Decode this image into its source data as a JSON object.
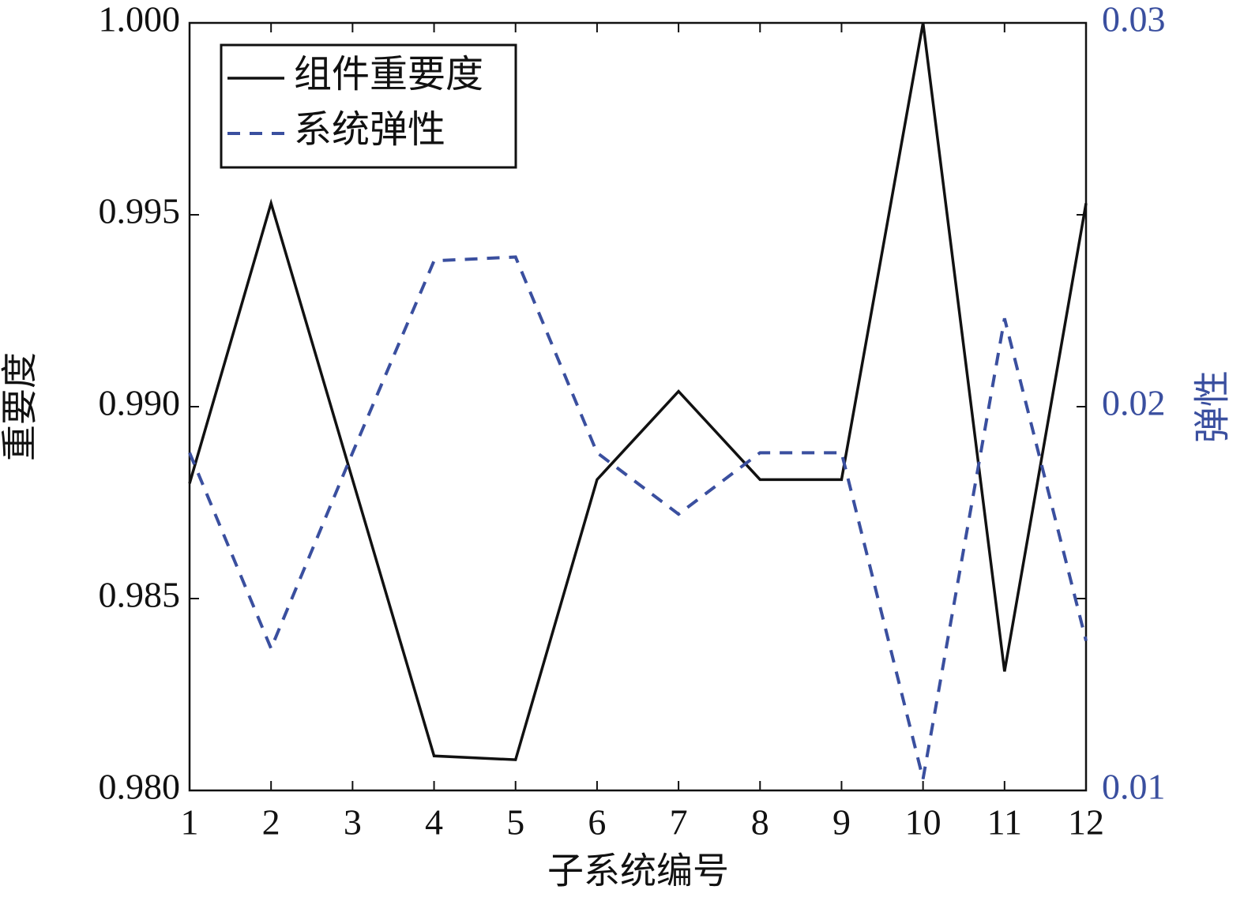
{
  "chart_data": {
    "type": "line",
    "x": [
      1,
      2,
      3,
      4,
      5,
      6,
      7,
      8,
      9,
      10,
      11,
      12
    ],
    "xlim": [
      1,
      12
    ],
    "xticks": [
      1,
      2,
      3,
      4,
      5,
      6,
      7,
      8,
      9,
      10,
      11,
      12
    ],
    "ylim": [
      0.98,
      1.0
    ],
    "yticks": [
      {
        "value": 0.98,
        "label": "0.980"
      },
      0.985,
      {
        "value": 0.99,
        "label": "0.990"
      },
      0.995,
      {
        "value": 1.0,
        "label": "1.000"
      }
    ],
    "y2lim": [
      0.01,
      0.03
    ],
    "y2ticks": [
      0.01,
      0.02,
      0.03
    ],
    "x_label": "子系统编号",
    "y_label": "重要度",
    "y2_label": "弹性",
    "y2_color": "#3a4f9f",
    "legend": "upper left",
    "series": [
      {
        "name": "组件重要度",
        "color": "#111111",
        "dash": false,
        "values": [
          0.988,
          0.9953,
          0.9881,
          0.9809,
          0.9808,
          0.9881,
          0.9904,
          0.9881,
          0.9881,
          1.0,
          0.9831,
          0.9953
        ]
      },
      {
        "name": "系统弹性",
        "color": "#3a4f9f",
        "dash": true,
        "axis": "y2",
        "values": [
          0.0188,
          0.0137,
          0.0188,
          0.0238,
          0.0239,
          0.0188,
          0.0172,
          0.0188,
          0.0188,
          0.0103,
          0.0223,
          0.0139
        ]
      }
    ]
  }
}
